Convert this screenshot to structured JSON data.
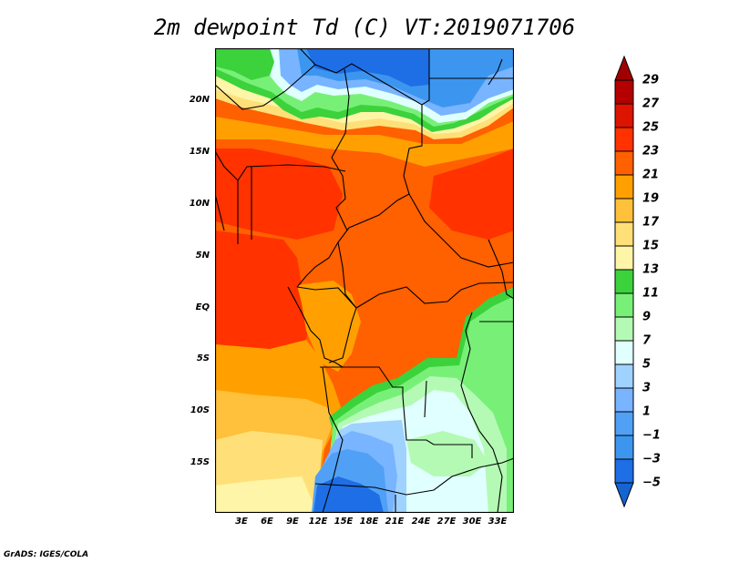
{
  "title": "2m dewpoint Td (C) VT:2019071706",
  "lat_labels": [
    "20N",
    "15N",
    "10N",
    "5N",
    "EQ",
    "5S",
    "10S",
    "15S"
  ],
  "lon_labels": [
    "3E",
    "6E",
    "9E",
    "12E",
    "15E",
    "18E",
    "21E",
    "24E",
    "27E",
    "30E",
    "33E"
  ],
  "colorbar": {
    "labels": [
      "29",
      "27",
      "25",
      "23",
      "21",
      "19",
      "17",
      "15",
      "13",
      "11",
      "9",
      "7",
      "5",
      "3",
      "1",
      "−1",
      "−3",
      "−5"
    ],
    "colors": [
      "#b40000",
      "#dc1400",
      "#ff3200",
      "#ff6000",
      "#ffa000",
      "#ffc03c",
      "#ffe078",
      "#fff5a8",
      "#3cd23c",
      "#78f078",
      "#b4fab4",
      "#e0ffff",
      "#a0d2ff",
      "#78b4ff",
      "#50a0f5",
      "#3c96f0",
      "#1e6ee6"
    ],
    "top_arrow_color": "#a00000",
    "bottom_arrow_color": "#1464d2"
  },
  "credit": "GrADS: IGES/COLA"
}
